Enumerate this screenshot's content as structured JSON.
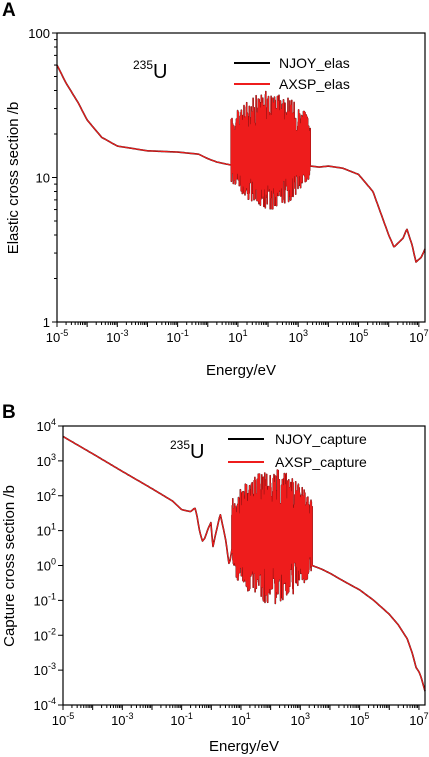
{
  "chart_data": [
    {
      "panel_label": "A",
      "type": "line",
      "annotation": "235U",
      "annotation_mass": "235",
      "annotation_symbol": "U",
      "xlabel": "Energy/eV",
      "ylabel": "Elastic cross section /b",
      "x_scale": "log",
      "y_scale": "log",
      "xlim": [
        1e-05,
        16000000.0
      ],
      "ylim": [
        1,
        100
      ],
      "x_ticks": [
        {
          "base": "10",
          "exp": "-5",
          "value": 1e-05
        },
        {
          "base": "10",
          "exp": "-3",
          "value": 0.001
        },
        {
          "base": "10",
          "exp": "-1",
          "value": 0.1
        },
        {
          "base": "10",
          "exp": "1",
          "value": 10.0
        },
        {
          "base": "10",
          "exp": "3",
          "value": 1000.0
        },
        {
          "base": "10",
          "exp": "5",
          "value": 100000.0
        },
        {
          "base": "10",
          "exp": "7",
          "value": 10000000.0
        }
      ],
      "y_ticks": [
        {
          "label": "1",
          "value": 1
        },
        {
          "label": "10",
          "value": 10
        },
        {
          "label": "100",
          "value": 100
        }
      ],
      "legend_position": "top-right",
      "series": [
        {
          "name": "NJOY_elas",
          "color": "#000000"
        },
        {
          "name": "AXSP_elas",
          "color": "#ee1c1c"
        }
      ],
      "smooth_curve": [
        [
          1e-05,
          60
        ],
        [
          2e-05,
          45
        ],
        [
          5e-05,
          33
        ],
        [
          0.0001,
          25
        ],
        [
          0.0003,
          19
        ],
        [
          0.001,
          16.5
        ],
        [
          0.01,
          15.3
        ],
        [
          0.1,
          15
        ],
        [
          0.5,
          14.5
        ],
        [
          1,
          13.5
        ],
        [
          2,
          12.8
        ],
        [
          4,
          12.4
        ],
        [
          6,
          12.2
        ]
      ],
      "resonance_region": {
        "e_min": 6,
        "e_max": 2500,
        "y_floor": 6,
        "y_ceiling": 40
      },
      "tail_curve": [
        [
          2500,
          12
        ],
        [
          5000,
          11.8
        ],
        [
          10000.0,
          12
        ],
        [
          30000.0,
          11.6
        ],
        [
          100000.0,
          10.5
        ],
        [
          300000.0,
          8
        ],
        [
          1000000.0,
          4
        ],
        [
          1500000.0,
          3.3
        ],
        [
          3000000.0,
          3.8
        ],
        [
          4000000.0,
          4.4
        ],
        [
          6000000.0,
          3.4
        ],
        [
          8000000.0,
          2.6
        ],
        [
          12000000.0,
          2.8
        ],
        [
          16000000.0,
          3.2
        ]
      ]
    },
    {
      "panel_label": "B",
      "type": "line",
      "annotation": "235U",
      "annotation_mass": "235",
      "annotation_symbol": "U",
      "xlabel": "Energy/eV",
      "ylabel": "Capture cross section /b",
      "x_scale": "log",
      "y_scale": "log",
      "xlim": [
        1e-05,
        16000000.0
      ],
      "ylim": [
        0.0001,
        10000.0
      ],
      "x_ticks": [
        {
          "base": "10",
          "exp": "-5",
          "value": 1e-05
        },
        {
          "base": "10",
          "exp": "-3",
          "value": 0.001
        },
        {
          "base": "10",
          "exp": "-1",
          "value": 0.1
        },
        {
          "base": "10",
          "exp": "1",
          "value": 10.0
        },
        {
          "base": "10",
          "exp": "3",
          "value": 1000.0
        },
        {
          "base": "10",
          "exp": "5",
          "value": 100000.0
        },
        {
          "base": "10",
          "exp": "7",
          "value": 10000000.0
        }
      ],
      "y_ticks": [
        {
          "base": "10",
          "exp": "-4",
          "value": 0.0001
        },
        {
          "base": "10",
          "exp": "-3",
          "value": 0.001
        },
        {
          "base": "10",
          "exp": "-2",
          "value": 0.01
        },
        {
          "base": "10",
          "exp": "-1",
          "value": 0.1
        },
        {
          "base": "10",
          "exp": "0",
          "value": 1
        },
        {
          "base": "10",
          "exp": "1",
          "value": 10
        },
        {
          "base": "10",
          "exp": "2",
          "value": 100
        },
        {
          "base": "10",
          "exp": "3",
          "value": 1000
        },
        {
          "base": "10",
          "exp": "4",
          "value": 10000
        }
      ],
      "legend_position": "top-right",
      "series": [
        {
          "name": "NJOY_capture",
          "color": "#000000"
        },
        {
          "name": "AXSP_capture",
          "color": "#ee1c1c"
        }
      ],
      "smooth_curve": [
        [
          1e-05,
          5000
        ],
        [
          0.0001,
          1600
        ],
        [
          0.001,
          500
        ],
        [
          0.01,
          160
        ],
        [
          0.05,
          70
        ],
        [
          0.1,
          40
        ],
        [
          0.2,
          35
        ],
        [
          0.28,
          45
        ],
        [
          0.32,
          30
        ],
        [
          0.4,
          10
        ],
        [
          0.5,
          5
        ],
        [
          0.6,
          6
        ],
        [
          0.8,
          12
        ],
        [
          1,
          18
        ],
        [
          1.1,
          3
        ],
        [
          1.3,
          6
        ],
        [
          2,
          30
        ],
        [
          3,
          6
        ],
        [
          4,
          1
        ],
        [
          5,
          3
        ]
      ],
      "resonance_region": {
        "e_min": 5,
        "e_max": 2500,
        "y_floor": 0.08,
        "y_ceiling": 600
      },
      "tail_curve": [
        [
          2500,
          1
        ],
        [
          5000,
          0.8
        ],
        [
          10000.0,
          0.6
        ],
        [
          30000.0,
          0.35
        ],
        [
          100000.0,
          0.2
        ],
        [
          300000.0,
          0.1
        ],
        [
          1000000.0,
          0.04
        ],
        [
          2000000.0,
          0.02
        ],
        [
          4000000.0,
          0.008
        ],
        [
          6000000.0,
          0.003
        ],
        [
          8000000.0,
          0.0012
        ],
        [
          10000000.0,
          0.0009
        ],
        [
          12000000.0,
          0.0006
        ],
        [
          16000000.0,
          0.00025
        ]
      ]
    }
  ]
}
